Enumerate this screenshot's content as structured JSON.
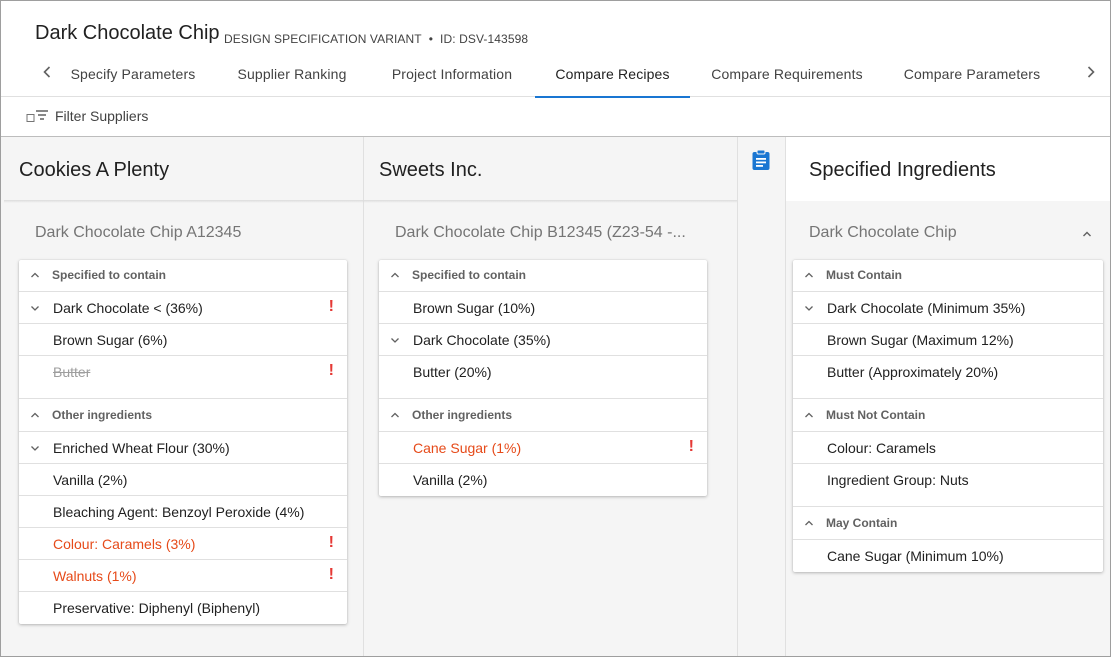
{
  "header": {
    "title": "Dark Chocolate Chip",
    "variant_label": "DESIGN SPECIFICATION VARIANT",
    "separator": "•",
    "id_label": "ID: DSV-143598"
  },
  "tabs": [
    {
      "label": "Specify Parameters"
    },
    {
      "label": "Supplier Ranking"
    },
    {
      "label": "Project Information"
    },
    {
      "label": "Compare Recipes",
      "active": true
    },
    {
      "label": "Compare Requirements"
    },
    {
      "label": "Compare Parameters"
    }
  ],
  "filter": {
    "label": "Filter Suppliers"
  },
  "colors": {
    "accent": "#1976d2",
    "warning": "#e64a19",
    "error_mark": "#e53935",
    "panel_bg": "#f5f5f5"
  },
  "suppliers": [
    {
      "name": "Cookies A Plenty",
      "recipe": "Dark Chocolate Chip A12345",
      "sections": [
        {
          "title": "Specified to contain",
          "items": [
            {
              "label": "Dark Chocolate < (36%)",
              "chevron": true,
              "warning_mark": "!"
            },
            {
              "label": "Brown Sugar (6%)"
            },
            {
              "label": "Butter",
              "struck": true,
              "warning_mark": "!"
            }
          ]
        },
        {
          "title": "Other ingredients",
          "items": [
            {
              "label": "Enriched Wheat Flour (30%)",
              "chevron": true
            },
            {
              "label": "Vanilla (2%)"
            },
            {
              "label": "Bleaching Agent: Benzoyl Peroxide (4%)"
            },
            {
              "label": "Colour: Caramels (3%)",
              "warn": true,
              "warning_mark": "!"
            },
            {
              "label": "Walnuts (1%)",
              "warn": true,
              "warning_mark": "!"
            },
            {
              "label": "Preservative: Diphenyl (Biphenyl)"
            }
          ]
        }
      ]
    },
    {
      "name": "Sweets Inc.",
      "recipe": "Dark Chocolate Chip B12345 (Z23-54 -...",
      "sections": [
        {
          "title": "Specified to contain",
          "items": [
            {
              "label": "Brown Sugar (10%)"
            },
            {
              "label": "Dark Chocolate (35%)",
              "chevron": true
            },
            {
              "label": "Butter (20%)"
            }
          ]
        },
        {
          "title": "Other ingredients",
          "items": [
            {
              "label": "Cane Sugar (1%)",
              "warn": true,
              "warning_mark": "!"
            },
            {
              "label": "Vanilla (2%)"
            }
          ]
        }
      ]
    }
  ],
  "specified": {
    "title": "Specified Ingredients",
    "recipe": "Dark Chocolate Chip",
    "sections": [
      {
        "title": "Must Contain",
        "items": [
          {
            "label": "Dark Chocolate (Minimum 35%)",
            "chevron": true
          },
          {
            "label": "Brown Sugar (Maximum 12%)"
          },
          {
            "label": "Butter (Approximately 20%)"
          }
        ]
      },
      {
        "title": "Must Not Contain",
        "items": [
          {
            "label": "Colour: Caramels"
          },
          {
            "label": "Ingredient Group: Nuts"
          }
        ]
      },
      {
        "title": "May Contain",
        "items": [
          {
            "label": "Cane Sugar (Minimum 10%)"
          }
        ]
      }
    ]
  }
}
